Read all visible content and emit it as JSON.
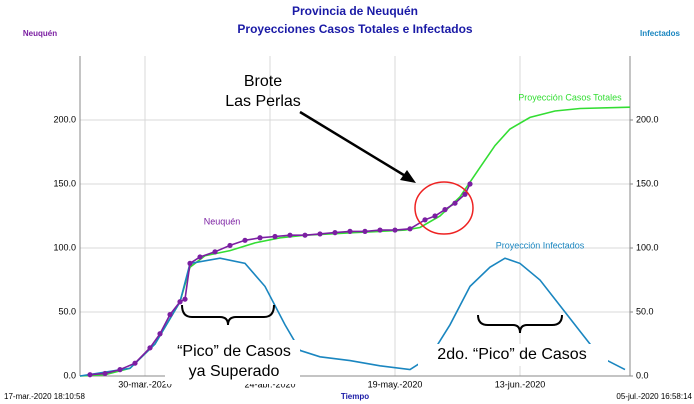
{
  "chart_data": {
    "type": "line",
    "title": "Provincia de Neuquén",
    "subtitle": "Proyecciones Casos Totales e Infectados",
    "y_axis_label": "Neuquén",
    "y2_axis_label": "Infectados",
    "x_axis_label": "Tiempo",
    "start_label": "17-mar.-2020 18:10:58",
    "end_label": "05-jul.-2020 16:58:14",
    "xlim": [
      "2020-03-17",
      "2020-07-05"
    ],
    "xticks": [
      {
        "value": "2020-03-30",
        "label": "30-mar.-2020"
      },
      {
        "value": "2020-04-24",
        "label": "24-abr.-2020"
      },
      {
        "value": "2020-05-19",
        "label": "19-may.-2020"
      },
      {
        "value": "2020-06-13",
        "label": "13-jun.-2020"
      }
    ],
    "ylim": [
      0,
      250
    ],
    "yticks": [
      {
        "value": 0,
        "label": "0.0"
      },
      {
        "value": 50,
        "label": "50.0"
      },
      {
        "value": 100,
        "label": "100.0"
      },
      {
        "value": 150,
        "label": "150.0"
      },
      {
        "value": 200,
        "label": "200.0"
      }
    ],
    "y2lim": [
      0,
      250
    ],
    "y2ticks": [
      {
        "value": 0,
        "label": "0.0"
      },
      {
        "value": 50,
        "label": "50.0"
      },
      {
        "value": 100,
        "label": "100.0"
      },
      {
        "value": 150,
        "label": "150.0"
      },
      {
        "value": 200,
        "label": "200.0"
      }
    ],
    "grid": true,
    "series": [
      {
        "name": "Proyección Casos Totales",
        "color": "#33dd33",
        "x": [
          "2020-03-17",
          "2020-03-22",
          "2020-03-27",
          "2020-04-01",
          "2020-04-06",
          "2020-04-08",
          "2020-04-11",
          "2020-04-16",
          "2020-04-21",
          "2020-04-26",
          "2020-05-01",
          "2020-05-06",
          "2020-05-11",
          "2020-05-16",
          "2020-05-21",
          "2020-05-24",
          "2020-05-28",
          "2020-06-01",
          "2020-06-05",
          "2020-06-08",
          "2020-06-11",
          "2020-06-15",
          "2020-06-20",
          "2020-06-25",
          "2020-07-05"
        ],
        "values": [
          0,
          1,
          6,
          25,
          58,
          85,
          94,
          98,
          104,
          108,
          110,
          111,
          112,
          113,
          114,
          116,
          125,
          140,
          163,
          180,
          193,
          202,
          207,
          209,
          210
        ]
      },
      {
        "name": "Proyección Infectados",
        "color": "#1a86c0",
        "axis": "y2",
        "x": [
          "2020-03-17",
          "2020-03-27",
          "2020-04-01",
          "2020-04-06",
          "2020-04-08",
          "2020-04-14",
          "2020-04-19",
          "2020-04-23",
          "2020-04-27",
          "2020-04-30",
          "2020-05-04",
          "2020-05-10",
          "2020-05-16",
          "2020-05-22",
          "2020-05-26",
          "2020-05-30",
          "2020-06-03",
          "2020-06-07",
          "2020-06-10",
          "2020-06-13",
          "2020-06-17",
          "2020-06-21",
          "2020-06-25",
          "2020-06-29",
          "2020-07-04"
        ],
        "values": [
          0,
          6,
          25,
          58,
          88,
          92,
          88,
          70,
          40,
          20,
          15,
          12,
          8,
          5,
          15,
          40,
          70,
          85,
          92,
          88,
          75,
          55,
          35,
          15,
          5
        ]
      },
      {
        "name": "Neuquén",
        "color": "#7b1fa2",
        "markers": true,
        "x": [
          "2020-03-19",
          "2020-03-22",
          "2020-03-25",
          "2020-03-28",
          "2020-03-31",
          "2020-04-02",
          "2020-04-04",
          "2020-04-06",
          "2020-04-07",
          "2020-04-08",
          "2020-04-10",
          "2020-04-13",
          "2020-04-16",
          "2020-04-19",
          "2020-04-22",
          "2020-04-25",
          "2020-04-28",
          "2020-05-01",
          "2020-05-04",
          "2020-05-07",
          "2020-05-10",
          "2020-05-13",
          "2020-05-16",
          "2020-05-19",
          "2020-05-22",
          "2020-05-25",
          "2020-05-27",
          "2020-05-29",
          "2020-05-31",
          "2020-06-02",
          "2020-06-03"
        ],
        "values": [
          1,
          2,
          5,
          10,
          22,
          33,
          48,
          58,
          60,
          88,
          93,
          97,
          102,
          106,
          108,
          109,
          110,
          110,
          111,
          112,
          113,
          113,
          114,
          114,
          115,
          122,
          125,
          130,
          135,
          142,
          150
        ]
      }
    ],
    "annotations": [
      "Brote",
      "Las Perlas",
      "“Pico” de Casos",
      "ya Superado",
      "2do. “Pico” de Casos"
    ]
  }
}
